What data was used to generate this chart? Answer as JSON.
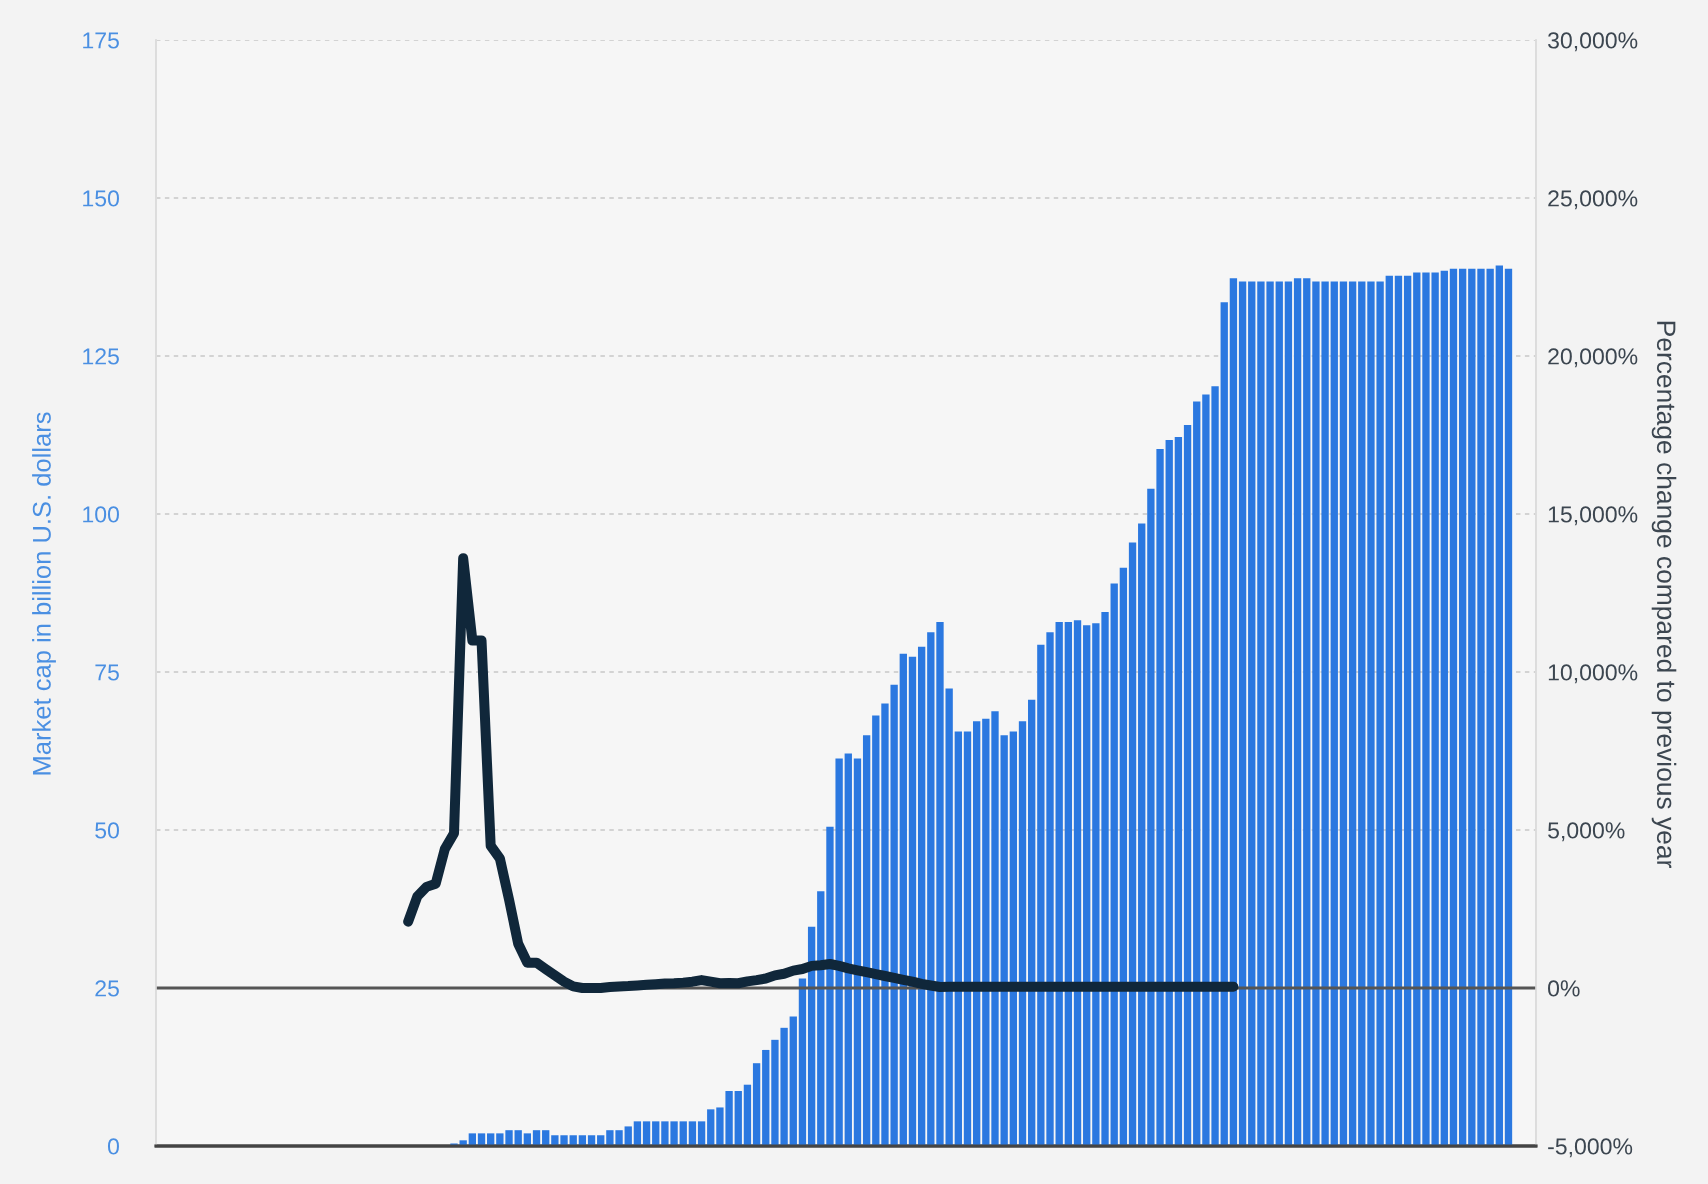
{
  "chart_data": {
    "type": "bar",
    "ylabel": "Market cap in billion U.S. dollars",
    "y2label": "Percentage change compared to previous year",
    "categories": [
      null,
      null,
      null,
      null,
      null,
      null,
      null,
      null,
      null,
      null,
      null,
      null,
      null,
      null,
      null,
      null,
      null,
      null,
      null,
      null,
      null,
      null,
      null,
      null,
      null,
      null,
      null,
      null,
      null,
      null,
      null,
      null,
      null,
      null,
      null,
      null,
      null,
      null,
      null,
      null,
      null,
      null,
      null,
      null,
      null,
      null,
      null,
      null,
      null,
      null,
      null,
      null,
      null,
      null,
      null,
      null,
      null,
      null,
      null,
      null,
      null,
      null,
      null,
      null,
      null,
      null,
      null,
      null,
      null,
      null,
      null,
      null,
      null,
      null,
      null,
      null,
      null,
      null,
      null,
      null,
      null,
      null,
      null,
      null,
      null,
      null,
      null,
      null,
      null,
      null,
      null,
      null,
      null,
      null,
      null,
      null,
      null,
      null,
      null,
      null,
      null,
      null,
      null,
      null,
      null,
      null,
      null,
      null,
      null,
      null,
      null,
      null,
      null,
      null,
      null,
      null,
      null,
      null,
      null,
      null,
      null,
      null,
      null,
      null,
      null,
      null,
      null,
      null,
      null,
      null,
      null,
      null,
      null,
      null,
      null,
      null,
      null,
      null,
      null,
      null,
      null,
      null,
      null,
      null,
      null,
      null,
      null,
      null
    ],
    "series": [
      {
        "color": "#2b78e0",
        "values": [
          null,
          null,
          null,
          null,
          null,
          null,
          null,
          null,
          null,
          null,
          null,
          null,
          null,
          null,
          null,
          null,
          null,
          null,
          null,
          null,
          null,
          null,
          null,
          null,
          null,
          null,
          null,
          null,
          null,
          null,
          null,
          null,
          0.4,
          0.9,
          2.0,
          2.0,
          2.0,
          2.0,
          2.5,
          2.5,
          2.0,
          2.5,
          2.5,
          1.7,
          1.7,
          1.7,
          1.7,
          1.7,
          1.7,
          2.5,
          2.5,
          3.1,
          3.9,
          3.9,
          3.9,
          3.9,
          3.9,
          3.9,
          3.9,
          3.9,
          5.8,
          6.1,
          8.7,
          8.7,
          9.7,
          13.1,
          15.2,
          16.8,
          18.7,
          20.5,
          26.5,
          34.7,
          40.3,
          50.5,
          61.3,
          62.1,
          61.3,
          65.0,
          68.1,
          70.0,
          73.0,
          77.9,
          77.4,
          79.0,
          81.3,
          82.9,
          72.4,
          65.6,
          65.6,
          67.2,
          67.6,
          68.8,
          65.0,
          65.6,
          67.2,
          70.6,
          79.3,
          81.3,
          82.9,
          82.9,
          83.2,
          82.4,
          82.7,
          84.5,
          89.0,
          91.5,
          95.5,
          98.5,
          104.0,
          110.3,
          111.7,
          112.2,
          114.1,
          117.8,
          118.9,
          120.2,
          133.5,
          137.3,
          136.8,
          136.8,
          136.8,
          136.8,
          136.8,
          136.8,
          137.3,
          137.3,
          136.8,
          136.8,
          136.8,
          136.8,
          136.8,
          136.8,
          136.8,
          136.8,
          137.7,
          137.7,
          137.7,
          138.2,
          138.2,
          138.2,
          138.5,
          138.8,
          138.8,
          138.8,
          138.8,
          138.8,
          139.3,
          138.8
        ]
      },
      {
        "type": "line",
        "axis": "y2",
        "color": "#10273a",
        "values": [
          null,
          null,
          null,
          null,
          null,
          null,
          null,
          null,
          null,
          null,
          null,
          null,
          null,
          null,
          null,
          null,
          null,
          null,
          null,
          null,
          null,
          null,
          null,
          null,
          null,
          null,
          null,
          2100,
          2900,
          3200,
          3300,
          4400,
          4900,
          13600,
          11000,
          11000,
          4500,
          4100,
          2800,
          1400,
          800,
          800,
          600,
          400,
          200,
          50,
          0,
          0,
          0,
          30,
          50,
          60,
          80,
          100,
          120,
          140,
          150,
          170,
          200,
          250,
          200,
          150,
          160,
          150,
          210,
          250,
          300,
          400,
          450,
          550,
          600,
          700,
          720,
          760,
          700,
          620,
          560,
          500,
          440,
          380,
          320,
          260,
          200,
          130,
          80,
          30,
          40,
          40,
          40,
          40,
          40,
          40,
          40,
          40,
          40,
          40,
          40,
          40,
          40,
          40,
          40,
          40,
          40,
          40,
          40,
          40,
          40,
          40,
          40,
          40,
          40,
          40,
          40,
          40,
          40,
          40,
          40,
          40,
          null,
          null,
          null,
          null,
          null,
          null,
          null,
          null,
          null,
          null,
          null,
          null,
          null,
          null,
          null,
          null,
          null,
          null,
          null,
          null,
          null,
          null,
          null,
          null,
          null,
          null,
          null,
          null,
          null,
          null
        ]
      }
    ],
    "ylim": [
      0,
      175
    ],
    "yticks": [
      0,
      25,
      50,
      75,
      100,
      125,
      150,
      175
    ],
    "y2lim": [
      -5000,
      30000
    ],
    "y2ticks": [
      {
        "value": -5000,
        "label": "-5,000%"
      },
      {
        "value": 0,
        "label": "0%"
      },
      {
        "value": 5000,
        "label": "5,000%"
      },
      {
        "value": 10000,
        "label": "10,000%"
      },
      {
        "value": 15000,
        "label": "15,000%"
      },
      {
        "value": 20000,
        "label": "20,000%"
      },
      {
        "value": 25000,
        "label": "25,000%"
      },
      {
        "value": 30000,
        "label": "30,000%"
      }
    ],
    "grid": "y",
    "line_style": "solid",
    "ref_lines": [
      {
        "axis": "y2",
        "value": 0,
        "color": "#555555"
      }
    ]
  }
}
